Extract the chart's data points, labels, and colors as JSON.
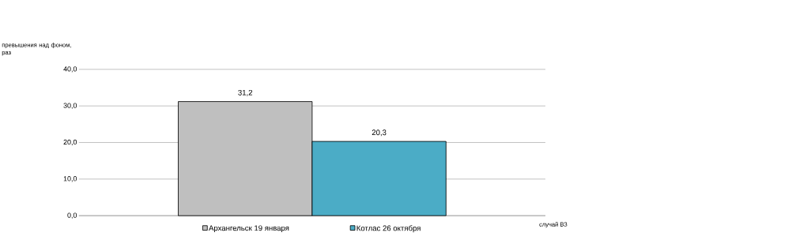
{
  "chart_data": {
    "type": "bar",
    "ylabel": "превышения над фоном, раз",
    "xlabel": "случай ВЗ",
    "categories": [
      null
    ],
    "series": [
      {
        "name": "Архангельск 19 января",
        "color": "#bfbfbf",
        "values": [
          31.2
        ],
        "value_labels": [
          "31,2"
        ]
      },
      {
        "name": "Котлас 26 октября",
        "color": "#4bacc6",
        "values": [
          20.3
        ],
        "value_labels": [
          "20,3"
        ]
      }
    ],
    "ylim": [
      0,
      40
    ],
    "yticks": [
      {
        "value": 0,
        "label": "0,0"
      },
      {
        "value": 10,
        "label": "10,0"
      },
      {
        "value": 20,
        "label": "20,0"
      },
      {
        "value": 30,
        "label": "30,0"
      },
      {
        "value": 40,
        "label": "40,0"
      }
    ],
    "grid": "y",
    "legend": "bottom"
  }
}
